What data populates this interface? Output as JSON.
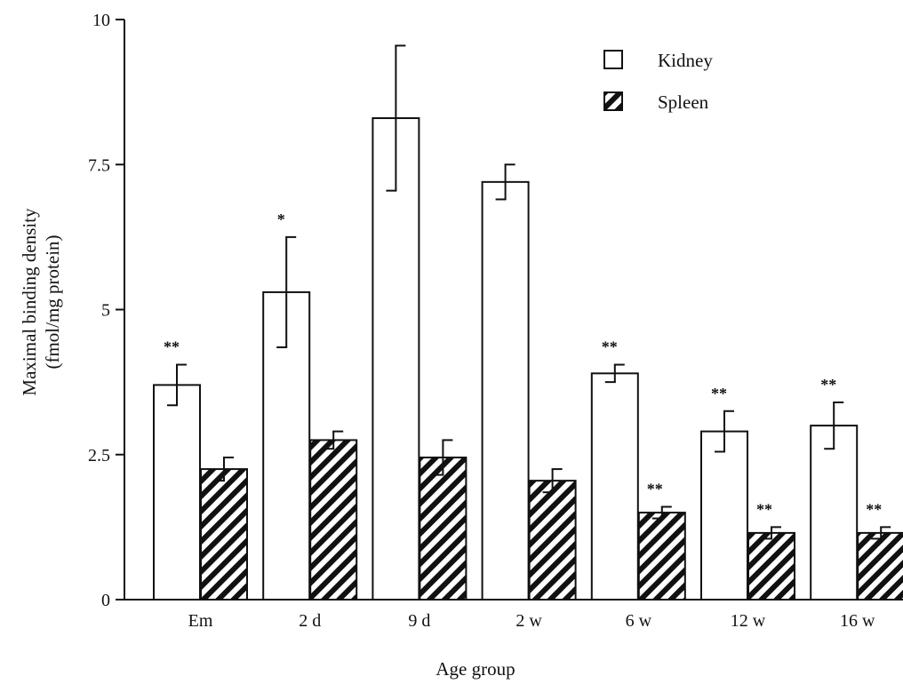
{
  "chart_data": {
    "type": "bar",
    "title": "",
    "xlabel": "Age group",
    "ylabel_line1": "Maximal binding density",
    "ylabel_line2": "(fmol/mg protein)",
    "ylim": [
      0,
      10
    ],
    "yticks": [
      {
        "value": 0,
        "label": "0"
      },
      {
        "value": 2.5,
        "label": "2.5"
      },
      {
        "value": 5,
        "label": "5"
      },
      {
        "value": 7.5,
        "label": "7.5"
      },
      {
        "value": 10,
        "label": "10"
      }
    ],
    "categories": [
      "Em",
      "2 d",
      "9 d",
      "2 w",
      "6 w",
      "12 w",
      "16 w"
    ],
    "legend_position": "top-right",
    "grid": false,
    "series": [
      {
        "name": "Kidney",
        "pattern": "open",
        "values": [
          3.7,
          5.3,
          8.3,
          7.2,
          3.9,
          2.9,
          3.0
        ],
        "errors": [
          0.35,
          0.95,
          1.25,
          0.3,
          0.15,
          0.35,
          0.4
        ],
        "significance": [
          "**",
          "*",
          "",
          "",
          "**",
          "**",
          "**"
        ]
      },
      {
        "name": "Spleen",
        "pattern": "hatched",
        "values": [
          2.25,
          2.75,
          2.45,
          2.05,
          1.5,
          1.15,
          1.15
        ],
        "errors": [
          0.2,
          0.15,
          0.3,
          0.2,
          0.1,
          0.1,
          0.1
        ],
        "significance": [
          "",
          "",
          "",
          "",
          "**",
          "**",
          "**"
        ]
      }
    ]
  }
}
